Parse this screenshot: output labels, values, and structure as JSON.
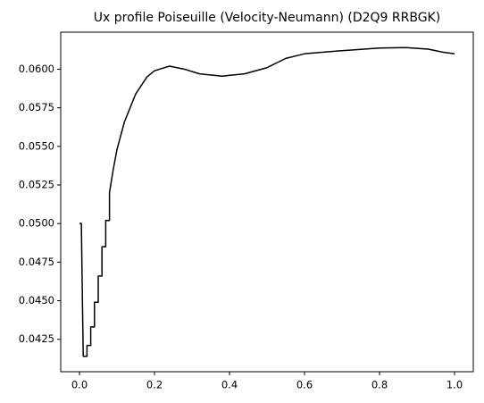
{
  "chart_data": {
    "type": "line",
    "title": "Ux profile Poiseuille (Velocity-Neumann) (D2Q9 RRBGK)",
    "x": [
      0,
      0.005,
      0.01,
      0.015,
      0.02,
      0.02,
      0.03,
      0.03,
      0.04,
      0.04,
      0.05,
      0.05,
      0.06,
      0.06,
      0.07,
      0.07,
      0.08,
      0.08,
      0.09,
      0.1,
      0.12,
      0.15,
      0.18,
      0.2,
      0.24,
      0.28,
      0.32,
      0.38,
      0.44,
      0.5,
      0.55,
      0.6,
      0.7,
      0.8,
      0.87,
      0.93,
      0.97,
      1.0
    ],
    "values": [
      0.05,
      0.05,
      0.0414,
      0.0414,
      0.0414,
      0.0421,
      0.0421,
      0.0433,
      0.0433,
      0.0449,
      0.0449,
      0.0466,
      0.0466,
      0.0485,
      0.0485,
      0.0502,
      0.0502,
      0.052,
      0.0535,
      0.0548,
      0.0566,
      0.0584,
      0.0595,
      0.0599,
      0.0602,
      0.06,
      0.0597,
      0.05955,
      0.0597,
      0.0601,
      0.0607,
      0.061,
      0.0612,
      0.06137,
      0.0614,
      0.0613,
      0.0611,
      0.061
    ],
    "color": "#000000",
    "xlim": [
      -0.05,
      1.05
    ],
    "ylim": [
      0.0404,
      0.0624
    ],
    "xticks": [
      {
        "value": 0,
        "label": "0.0"
      },
      {
        "value": 0.2,
        "label": "0.2"
      },
      {
        "value": 0.4,
        "label": "0.4"
      },
      {
        "value": 0.6,
        "label": "0.6"
      },
      {
        "value": 0.8,
        "label": "0.8"
      },
      {
        "value": 1,
        "label": "1.0"
      }
    ],
    "yticks": [
      {
        "value": 0.0425,
        "label": "0.0425"
      },
      {
        "value": 0.045,
        "label": "0.0450"
      },
      {
        "value": 0.0475,
        "label": "0.0475"
      },
      {
        "value": 0.05,
        "label": "0.0500"
      },
      {
        "value": 0.0525,
        "label": "0.0525"
      },
      {
        "value": 0.055,
        "label": "0.0550"
      },
      {
        "value": 0.0575,
        "label": "0.0575"
      },
      {
        "value": 0.06,
        "label": "0.0600"
      }
    ],
    "grid": false
  }
}
